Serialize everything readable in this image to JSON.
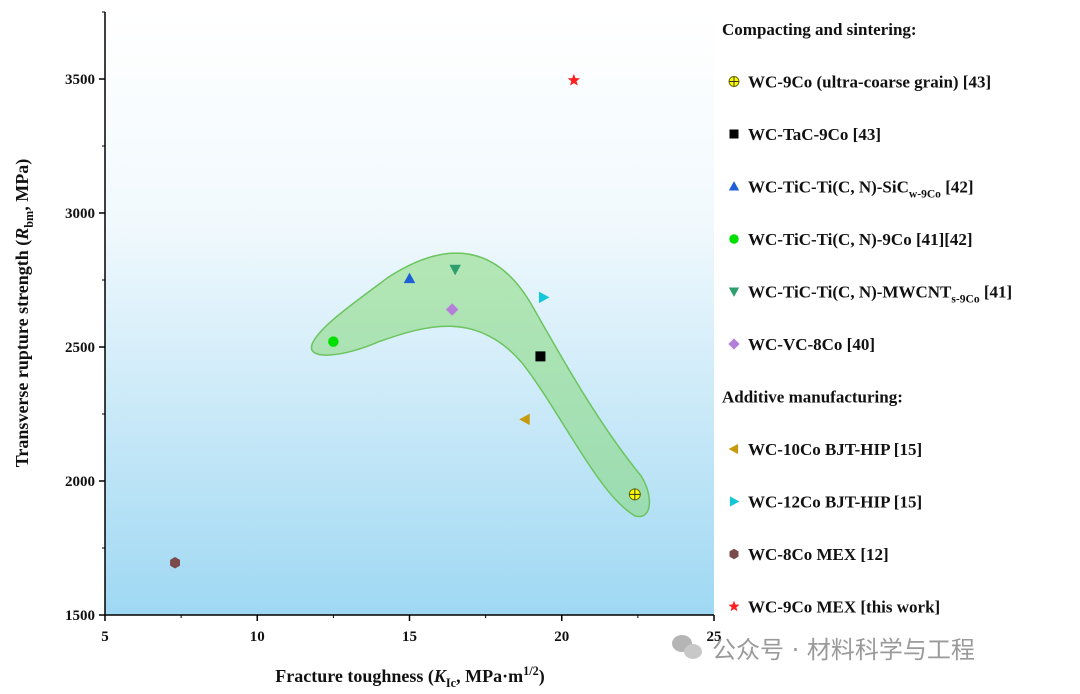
{
  "chart_data": {
    "type": "scatter",
    "xlabel": "Fracture toughness (K_Ic, MPa·m^1/2)",
    "ylabel": "Transverse rupture strength (R_bm, MPa)",
    "xlim": [
      5,
      25
    ],
    "ylim": [
      1500,
      3750
    ],
    "x_ticks": [
      5,
      10,
      15,
      20,
      25
    ],
    "y_ticks": [
      1500,
      2000,
      2500,
      3000,
      3500
    ],
    "grid": false,
    "legend_position": "right",
    "legend_groups": [
      {
        "heading": "Compacting and sintering:",
        "series": [
          {
            "label": "WC-9Co (ultra-coarse grain) [43]",
            "marker": "crossed-circle",
            "color": "#ffff00",
            "points": [
              {
                "x": 22.4,
                "y": 1950
              }
            ]
          },
          {
            "label": "WC-TaC-9Co [43]",
            "marker": "square",
            "color": "#000000",
            "points": [
              {
                "x": 19.3,
                "y": 2465
              }
            ]
          },
          {
            "label": "WC-TiC-Ti(C, N)-SiC_w-9Co [42]",
            "marker": "triangle-up",
            "color": "#1f5fd6",
            "points": [
              {
                "x": 15.0,
                "y": 2755
              }
            ]
          },
          {
            "label": "WC-TiC-Ti(C, N)-9Co [41][42]",
            "marker": "circle",
            "color": "#00e000",
            "points": [
              {
                "x": 12.5,
                "y": 2520
              }
            ]
          },
          {
            "label": "WC-TiC-Ti(C, N)-MWCNT_s-9Co [41]",
            "marker": "triangle-down",
            "color": "#2e9e6e",
            "points": [
              {
                "x": 16.5,
                "y": 2790
              }
            ]
          },
          {
            "label": "WC-VC-8Co [40]",
            "marker": "diamond",
            "color": "#b57fd9",
            "points": [
              {
                "x": 16.4,
                "y": 2640
              }
            ]
          }
        ]
      },
      {
        "heading": "Additive manufacturing:",
        "series": [
          {
            "label": "WC-10Co BJT-HIP [15]",
            "marker": "triangle-left",
            "color": "#c89a10",
            "points": [
              {
                "x": 18.8,
                "y": 2230
              }
            ]
          },
          {
            "label": "WC-12Co BJT-HIP [15]",
            "marker": "triangle-right",
            "color": "#12c8d8",
            "points": [
              {
                "x": 19.4,
                "y": 2685
              }
            ]
          },
          {
            "label": "WC-8Co MEX [12]",
            "marker": "hexagon",
            "color": "#7b4a4a",
            "points": [
              {
                "x": 7.3,
                "y": 1695
              }
            ]
          },
          {
            "label": "WC-9Co MEX [this work]",
            "marker": "star",
            "color": "#ff2020",
            "label_color": "#ff3030",
            "points": [
              {
                "x": 20.4,
                "y": 3495
              }
            ]
          }
        ]
      }
    ],
    "highlight_region": {
      "color": "#86d97a",
      "outline": "#6cc45e"
    }
  },
  "watermark": {
    "text": "公众号 · 材料科学与工程"
  }
}
